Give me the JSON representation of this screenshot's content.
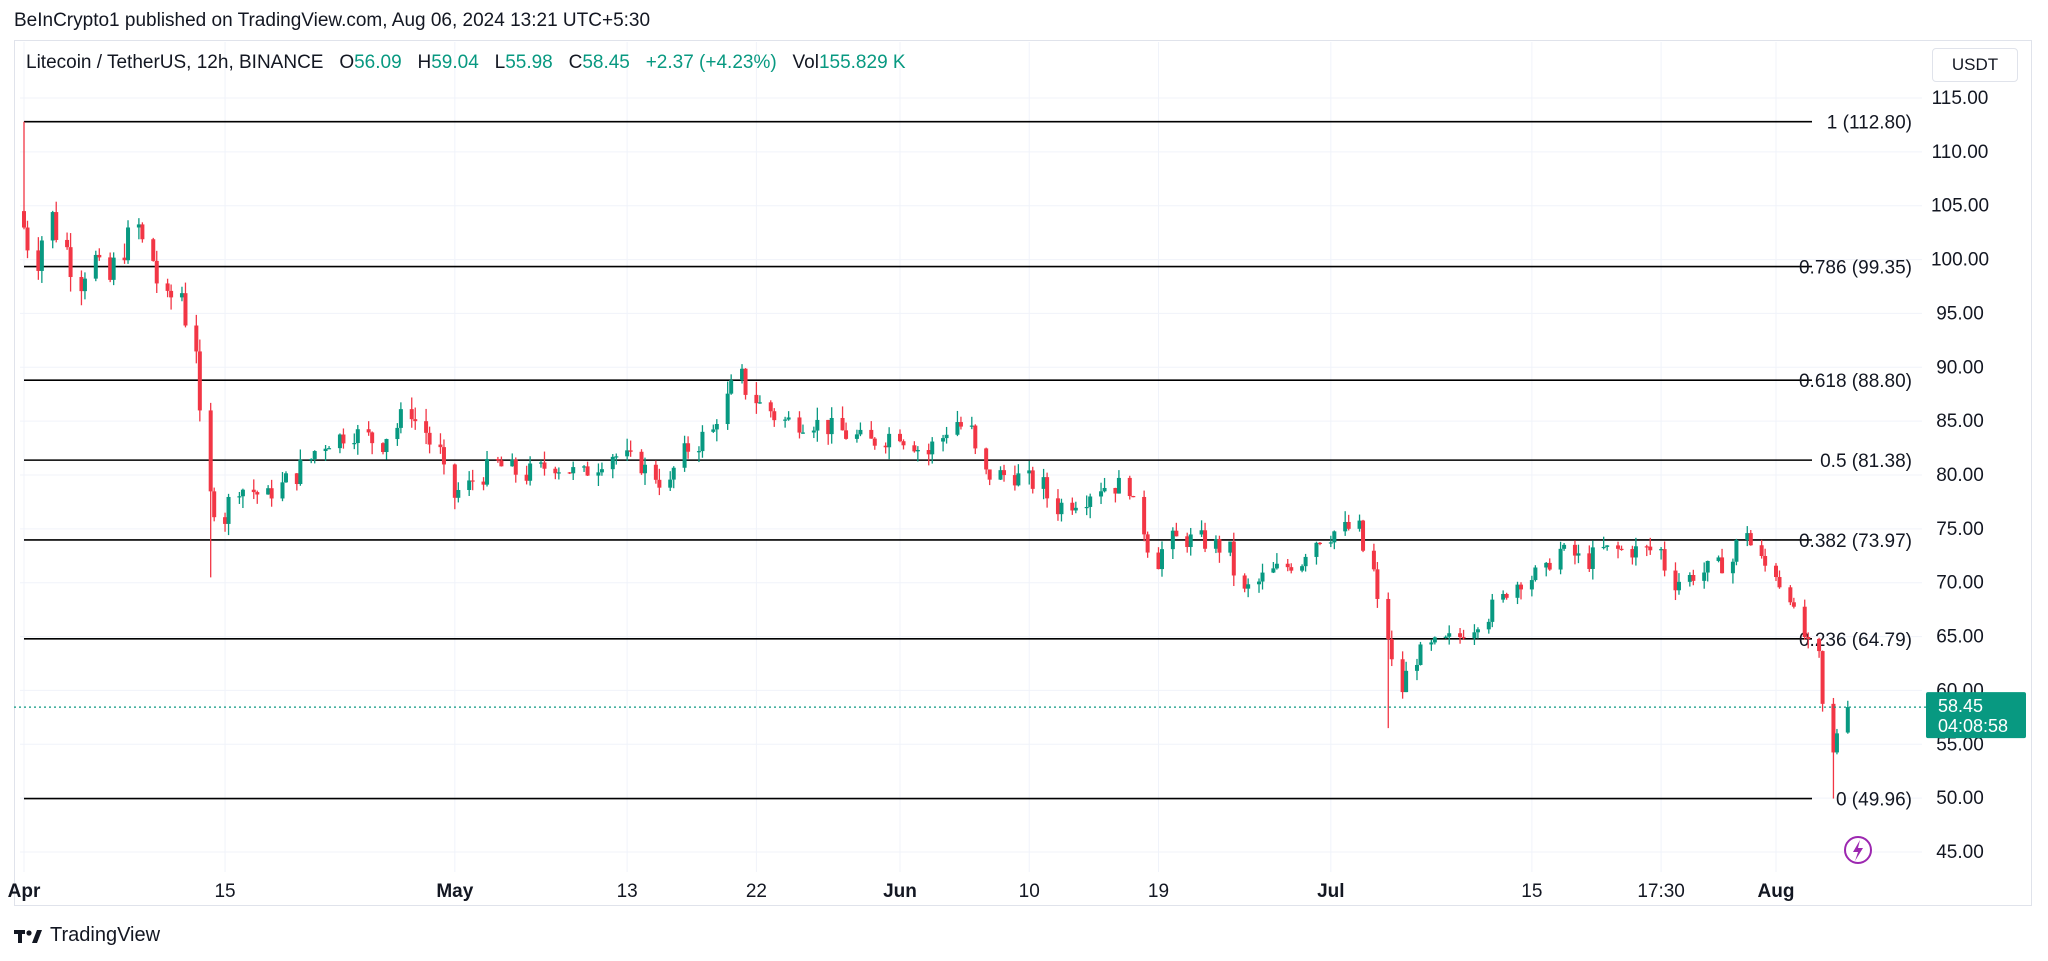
{
  "header": {
    "publish_line": "BeInCrypto1 published on TradingView.com, Aug 06, 2024 13:21 UTC+5:30"
  },
  "legend": {
    "symbol": "Litecoin / TetherUS, 12h, BINANCE",
    "o_label": "O",
    "o_value": "56.09",
    "h_label": "H",
    "h_value": "59.04",
    "l_label": "L",
    "l_value": "55.98",
    "c_label": "C",
    "c_value": "58.45",
    "change": "+2.37 (+4.23%)",
    "vol_label": "Vol",
    "vol_value": "155.829 K"
  },
  "currency_button": "USDT",
  "price_tag": {
    "price": "58.45",
    "countdown": "04:08:58"
  },
  "footer": {
    "brand": "TradingView",
    "logo_icon": "tradingview-logo-icon"
  },
  "colors": {
    "up": "#089981",
    "down": "#f23645",
    "grid": "#f0f3fa",
    "fib_line": "#000000",
    "alert": "#9c27b0"
  },
  "chart_data": {
    "type": "candlestick",
    "symbol": "LTC/USDT",
    "interval": "12h",
    "current_price": 58.45,
    "ylim": [
      42,
      117
    ],
    "yticks": [
      45,
      50,
      55,
      60,
      65,
      70,
      75,
      80,
      85,
      90,
      95,
      100,
      105,
      110,
      115
    ],
    "ytick_labels": [
      "45.00",
      "50.00",
      "55.00",
      "60.00",
      "65.00",
      "70.00",
      "75.00",
      "80.00",
      "85.00",
      "90.00",
      "95.00",
      "100.00",
      "105.00",
      "110.00",
      "115.00"
    ],
    "xlim": [
      "2024-04-01",
      "2024-08-11"
    ],
    "xticks": [
      {
        "date": "2024-04-01",
        "label": "Apr"
      },
      {
        "date": "2024-04-15",
        "label": "15"
      },
      {
        "date": "2024-05-01",
        "label": "May"
      },
      {
        "date": "2024-05-13",
        "label": "13"
      },
      {
        "date": "2024-05-22",
        "label": "22"
      },
      {
        "date": "2024-06-01",
        "label": "Jun"
      },
      {
        "date": "2024-06-10",
        "label": "10"
      },
      {
        "date": "2024-06-19",
        "label": "19"
      },
      {
        "date": "2024-07-01",
        "label": "Jul"
      },
      {
        "date": "2024-07-15",
        "label": "15"
      },
      {
        "date": "2024-07-24",
        "label": "17:30"
      },
      {
        "date": "2024-08-01",
        "label": "Aug"
      }
    ],
    "fib_levels": [
      {
        "ratio": "1",
        "price": 112.8,
        "label": "1 (112.80)"
      },
      {
        "ratio": "0.786",
        "price": 99.35,
        "label": "0.786 (99.35)"
      },
      {
        "ratio": "0.618",
        "price": 88.8,
        "label": "0.618 (88.80)"
      },
      {
        "ratio": "0.5",
        "price": 81.38,
        "label": "0.5 (81.38)"
      },
      {
        "ratio": "0.382",
        "price": 73.97,
        "label": "0.382 (73.97)"
      },
      {
        "ratio": "0.236",
        "price": 64.79,
        "label": "0.236 (64.79)"
      },
      {
        "ratio": "0",
        "price": 49.96,
        "label": "0 (49.96)"
      }
    ],
    "close_path": [
      [
        "2024-04-01",
        103
      ],
      [
        "2024-04-02",
        100
      ],
      [
        "2024-04-03",
        104
      ],
      [
        "2024-04-05",
        98
      ],
      [
        "2024-04-06",
        100
      ],
      [
        "2024-04-07",
        98
      ],
      [
        "2024-04-08",
        101
      ],
      [
        "2024-04-09",
        103
      ],
      [
        "2024-04-10",
        100
      ],
      [
        "2024-04-11",
        96
      ],
      [
        "2024-04-12",
        97
      ],
      [
        "2024-04-13",
        92
      ],
      [
        "2024-04-14",
        78
      ],
      [
        "2024-04-15",
        76
      ],
      [
        "2024-04-16",
        79
      ],
      [
        "2024-04-18",
        78
      ],
      [
        "2024-04-20",
        80
      ],
      [
        "2024-04-22",
        83
      ],
      [
        "2024-04-24",
        84
      ],
      [
        "2024-04-26",
        83
      ],
      [
        "2024-04-28",
        86
      ],
      [
        "2024-04-29",
        84
      ],
      [
        "2024-04-30",
        82
      ],
      [
        "2024-05-01",
        78
      ],
      [
        "2024-05-02",
        79
      ],
      [
        "2024-05-04",
        81
      ],
      [
        "2024-05-06",
        80
      ],
      [
        "2024-05-08",
        81
      ],
      [
        "2024-05-10",
        80
      ],
      [
        "2024-05-12",
        82
      ],
      [
        "2024-05-14",
        81
      ],
      [
        "2024-05-16",
        79
      ],
      [
        "2024-05-17",
        82
      ],
      [
        "2024-05-19",
        84
      ],
      [
        "2024-05-20",
        87
      ],
      [
        "2024-05-21",
        89
      ],
      [
        "2024-05-22",
        87
      ],
      [
        "2024-05-24",
        85
      ],
      [
        "2024-05-26",
        85
      ],
      [
        "2024-05-28",
        84
      ],
      [
        "2024-05-30",
        83
      ],
      [
        "2024-06-01",
        84
      ],
      [
        "2024-06-03",
        82
      ],
      [
        "2024-06-05",
        85
      ],
      [
        "2024-06-06",
        84
      ],
      [
        "2024-06-07",
        80
      ],
      [
        "2024-06-09",
        80
      ],
      [
        "2024-06-11",
        79
      ],
      [
        "2024-06-12",
        77
      ],
      [
        "2024-06-14",
        78
      ],
      [
        "2024-06-15",
        79
      ],
      [
        "2024-06-17",
        79
      ],
      [
        "2024-06-18",
        75
      ],
      [
        "2024-06-19",
        72
      ],
      [
        "2024-06-20",
        74
      ],
      [
        "2024-06-22",
        74
      ],
      [
        "2024-06-24",
        73
      ],
      [
        "2024-06-25",
        69
      ],
      [
        "2024-06-27",
        71
      ],
      [
        "2024-06-29",
        72
      ],
      [
        "2024-06-30",
        74
      ],
      [
        "2024-07-02",
        75
      ],
      [
        "2024-07-03",
        75
      ],
      [
        "2024-07-04",
        71
      ],
      [
        "2024-07-05",
        65
      ],
      [
        "2024-07-06",
        60
      ],
      [
        "2024-07-07",
        63
      ],
      [
        "2024-07-08",
        64
      ],
      [
        "2024-07-10",
        65
      ],
      [
        "2024-07-12",
        67
      ],
      [
        "2024-07-14",
        70
      ],
      [
        "2024-07-16",
        71
      ],
      [
        "2024-07-17",
        73
      ],
      [
        "2024-07-19",
        72
      ],
      [
        "2024-07-20",
        73
      ],
      [
        "2024-07-22",
        73
      ],
      [
        "2024-07-24",
        73
      ],
      [
        "2024-07-25",
        70
      ],
      [
        "2024-07-27",
        71
      ],
      [
        "2024-07-29",
        72
      ],
      [
        "2024-07-30",
        75
      ],
      [
        "2024-07-31",
        72
      ],
      [
        "2024-08-01",
        71
      ],
      [
        "2024-08-02",
        69
      ],
      [
        "2024-08-03",
        65
      ],
      [
        "2024-08-04",
        63
      ],
      [
        "2024-08-05",
        54
      ],
      [
        "2024-08-06",
        58.45
      ]
    ],
    "notable_points": [
      {
        "date": "2024-04-01",
        "high": 112.8,
        "note": "swing high"
      },
      {
        "date": "2024-04-14",
        "low": 70.5,
        "note": "spike low"
      },
      {
        "date": "2024-07-05",
        "low": 56.5,
        "note": "spike low"
      },
      {
        "date": "2024-08-05",
        "low": 49.96,
        "note": "swing low"
      }
    ],
    "last_candle": {
      "open": 56.09,
      "high": 59.04,
      "low": 55.98,
      "close": 58.45
    }
  }
}
